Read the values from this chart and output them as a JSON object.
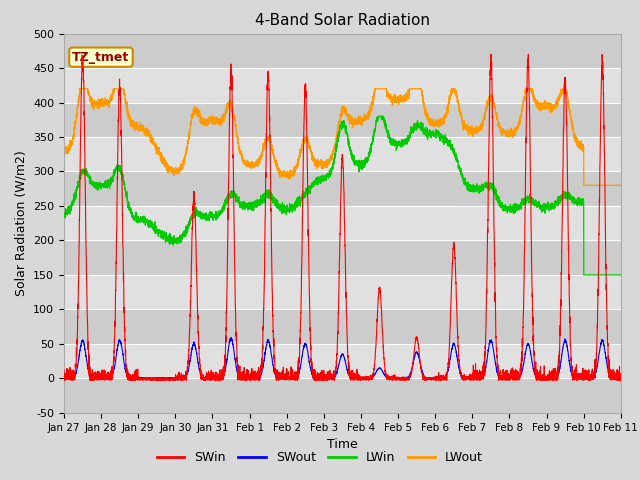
{
  "title": "4-Band Solar Radiation",
  "xlabel": "Time",
  "ylabel": "Solar Radiation (W/m2)",
  "annotation": "TZ_tmet",
  "ylim": [
    -50,
    500
  ],
  "xlim": [
    0,
    15
  ],
  "fig_bg": "#d8d8d8",
  "plot_bg": "#d8d8d8",
  "legend": [
    "SWin",
    "SWout",
    "LWin",
    "LWout"
  ],
  "legend_colors": [
    "#ff0000",
    "#0000ff",
    "#00cc00",
    "#ff9900"
  ],
  "line_colors": [
    "#ff0000",
    "#0000ff",
    "#00cc00",
    "#ff9900"
  ],
  "tick_labels": [
    "Jan 27",
    "Jan 28",
    "Jan 29",
    "Jan 30",
    "Jan 31",
    "Feb 1",
    "Feb 2",
    "Feb 3",
    "Feb 4",
    "Feb 5",
    "Feb 6",
    "Feb 7",
    "Feb 8",
    "Feb 9",
    "Feb 10",
    "Feb 11"
  ],
  "num_days": 15,
  "pts_per_day": 288,
  "day_peaks_SWin": [
    470,
    425,
    0,
    265,
    445,
    440,
    420,
    320,
    130,
    60,
    195,
    460,
    460,
    435,
    455
  ],
  "day_peaks_SWout": [
    55,
    55,
    0,
    50,
    58,
    55,
    50,
    35,
    15,
    38,
    50,
    55,
    50,
    55,
    55
  ],
  "lwin_dayvals": [
    240,
    280,
    230,
    200,
    235,
    250,
    245,
    290,
    310,
    340,
    355,
    275,
    245,
    248,
    255
  ],
  "lwout_dayvals": [
    330,
    400,
    365,
    300,
    375,
    310,
    295,
    310,
    375,
    405,
    370,
    360,
    355,
    395,
    335
  ]
}
